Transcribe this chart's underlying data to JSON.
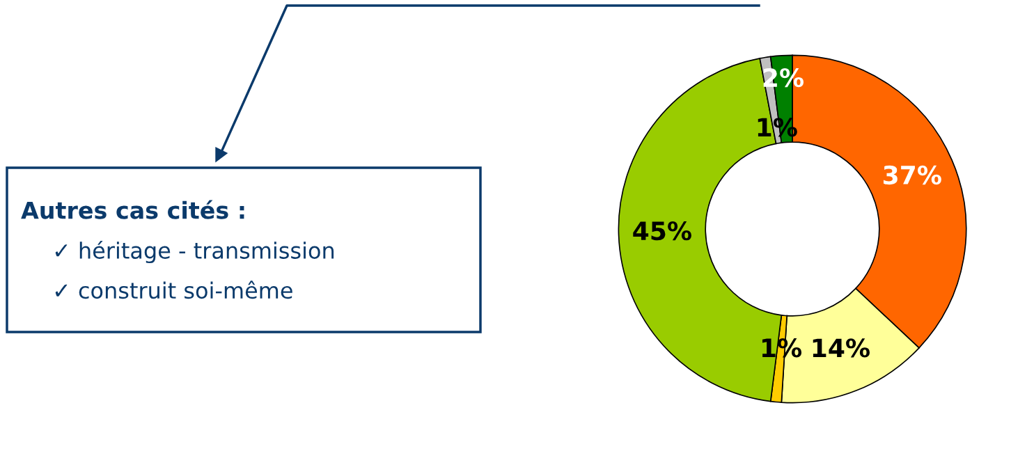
{
  "chart_data": {
    "type": "donut",
    "categories": [
      null,
      null,
      null,
      null,
      null,
      null
    ],
    "values": [
      37,
      14,
      1,
      45,
      1,
      2
    ],
    "colors": [
      "#ff6600",
      "#ffff99",
      "#ffcc00",
      "#99cc00",
      "#c0c0c0",
      "#008000"
    ],
    "value_labels": [
      "37%",
      "14%",
      "1%",
      "45%",
      "1%",
      "2%"
    ],
    "annotations": [
      "Autres cas cités :",
      "✓ héritage - transmission",
      "✓ construit soi-même"
    ]
  }
}
